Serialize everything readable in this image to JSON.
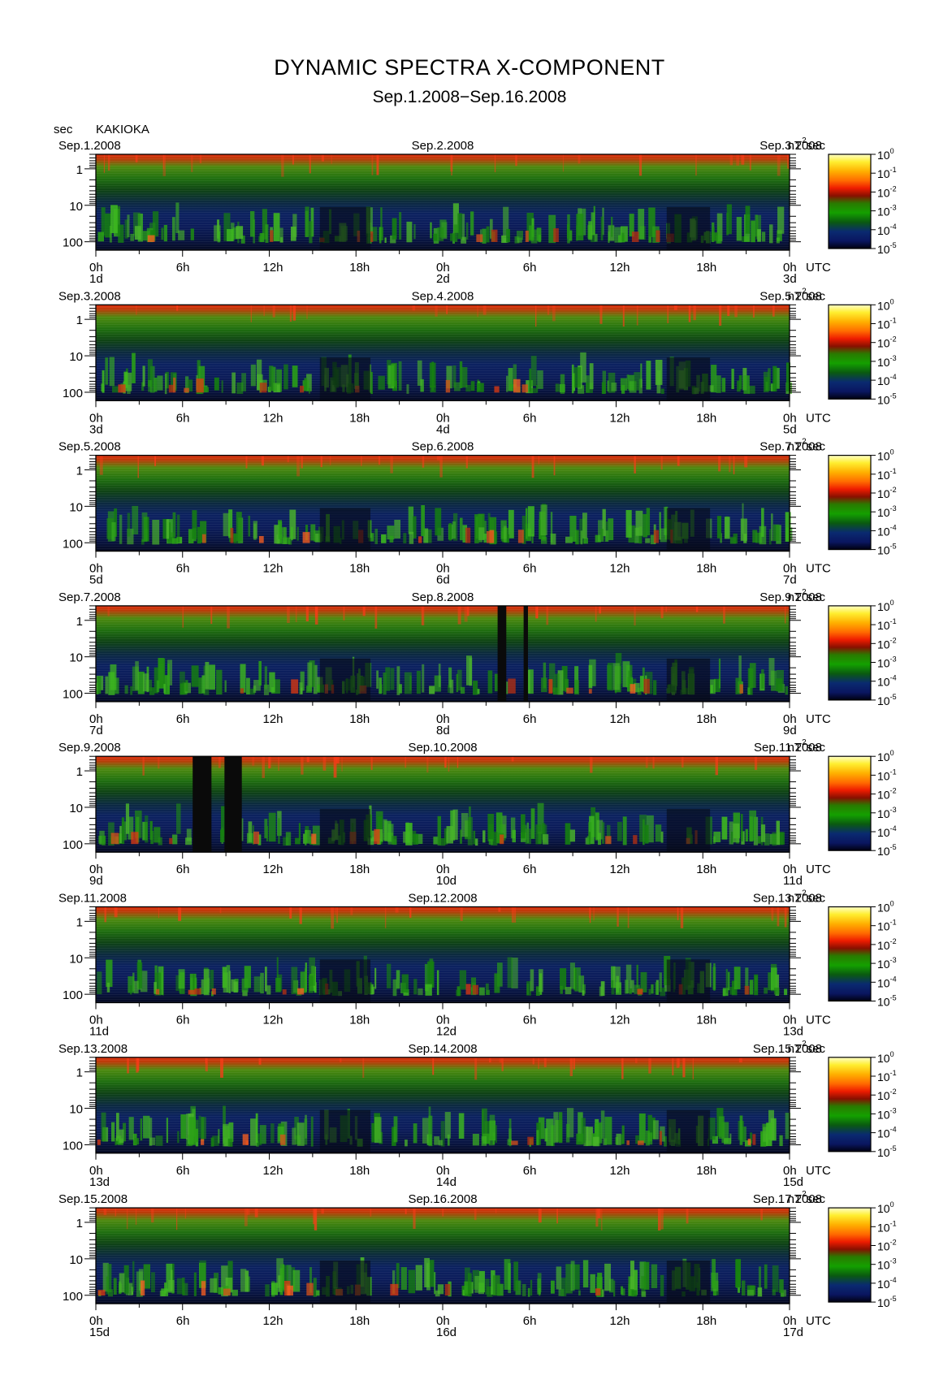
{
  "title": "DYNAMIC SPECTRA X-COMPONENT",
  "subtitle": "Sep.1.2008−Sep.16.2008",
  "y_unit": "sec",
  "station": "KAKIOKA",
  "utc_label": "UTC",
  "colorbar_unit_base": "nT",
  "colorbar_unit_exp": "2",
  "colorbar_unit_tail": "sec",
  "chart_data": {
    "type": "heatmap",
    "y_axis": {
      "label": "sec",
      "scale": "log",
      "ticks": [
        "1",
        "10",
        "100"
      ],
      "range": [
        0.4,
        170
      ]
    },
    "x_axis": {
      "tick_labels": [
        "0h",
        "6h",
        "12h",
        "18h",
        "0h",
        "6h",
        "12h",
        "18h",
        "0h"
      ]
    },
    "colorbar": {
      "scale": "log",
      "ticks": [
        {
          "base": "10",
          "exp": "0"
        },
        {
          "base": "10",
          "exp": "-1"
        },
        {
          "base": "10",
          "exp": "-2"
        },
        {
          "base": "10",
          "exp": "-3"
        },
        {
          "base": "10",
          "exp": "-4"
        },
        {
          "base": "10",
          "exp": "-5"
        }
      ],
      "colors": [
        "#ffffc0",
        "#ffdd00",
        "#ff8800",
        "#ee2200",
        "#771100",
        "#228800",
        "#116600",
        "#003300",
        "#113388",
        "#000022"
      ]
    },
    "panels": [
      {
        "date_left": "Sep.1.2008",
        "date_mid": "Sep.2.2008",
        "date_right": "Sep.3.2008",
        "day_left": "1d",
        "day_mid": "2d",
        "day_right": "3d"
      },
      {
        "date_left": "Sep.3.2008",
        "date_mid": "Sep.4.2008",
        "date_right": "Sep.5.2008",
        "day_left": "3d",
        "day_mid": "4d",
        "day_right": "5d"
      },
      {
        "date_left": "Sep.5.2008",
        "date_mid": "Sep.6.2008",
        "date_right": "Sep.7.2008",
        "day_left": "5d",
        "day_mid": "6d",
        "day_right": "7d"
      },
      {
        "date_left": "Sep.7.2008",
        "date_mid": "Sep.8.2008",
        "date_right": "Sep.9.2008",
        "day_left": "7d",
        "day_mid": "8d",
        "day_right": "9d"
      },
      {
        "date_left": "Sep.9.2008",
        "date_mid": "Sep.10.2008",
        "date_right": "Sep.11.2008",
        "day_left": "9d",
        "day_mid": "10d",
        "day_right": "11d"
      },
      {
        "date_left": "Sep.11.2008",
        "date_mid": "Sep.12.2008",
        "date_right": "Sep.13.2008",
        "day_left": "11d",
        "day_mid": "12d",
        "day_right": "13d"
      },
      {
        "date_left": "Sep.13.2008",
        "date_mid": "Sep.14.2008",
        "date_right": "Sep.15.2008",
        "day_left": "13d",
        "day_mid": "14d",
        "day_right": "15d"
      },
      {
        "date_left": "Sep.15.2008",
        "date_mid": "Sep.16.2008",
        "date_right": "Sep.17.2008",
        "day_left": "15d",
        "day_mid": "16d",
        "day_right": "17d"
      }
    ]
  }
}
